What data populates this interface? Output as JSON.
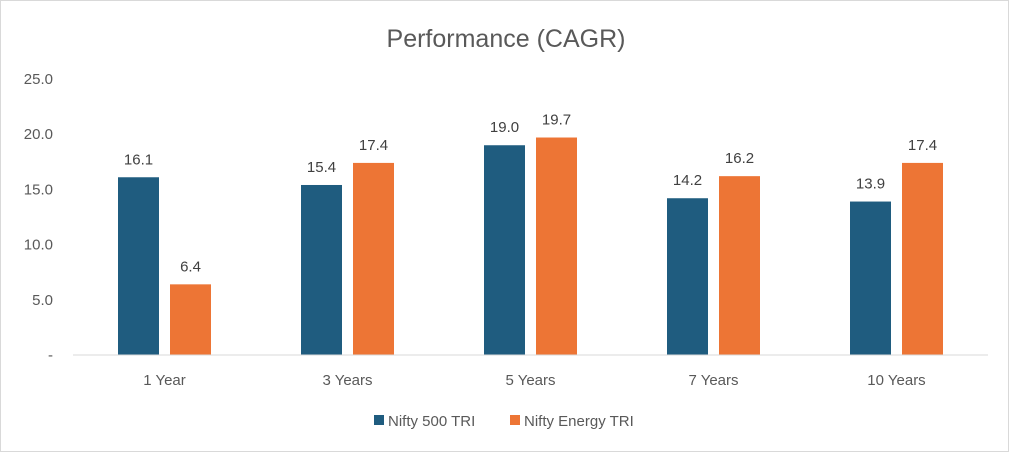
{
  "chart_data": {
    "type": "bar",
    "title": "Performance (CAGR)",
    "categories": [
      "1 Year",
      "3 Years",
      "5 Years",
      "7 Years",
      "10 Years"
    ],
    "series": [
      {
        "name": "Nifty 500 TRI",
        "color": "#1f5c7f",
        "values": [
          16.1,
          15.4,
          19.0,
          14.2,
          13.9
        ],
        "labels": [
          "16.1",
          "15.4",
          "19.0",
          "14.2",
          "13.9"
        ]
      },
      {
        "name": "Nifty Energy TRI",
        "color": "#ed7535",
        "values": [
          6.4,
          17.4,
          19.7,
          16.2,
          17.4
        ],
        "labels": [
          "6.4",
          "17.4",
          "19.7",
          "16.2",
          "17.4"
        ]
      }
    ],
    "ylim": [
      0,
      25
    ],
    "yticks": [
      0,
      5,
      10,
      15,
      20,
      25
    ],
    "ytick_labels": [
      "-",
      "5.0",
      "10.0",
      "15.0",
      "20.0",
      "25.0"
    ],
    "xlabel": "",
    "ylabel": "",
    "grid": false,
    "legend_position": "bottom"
  }
}
